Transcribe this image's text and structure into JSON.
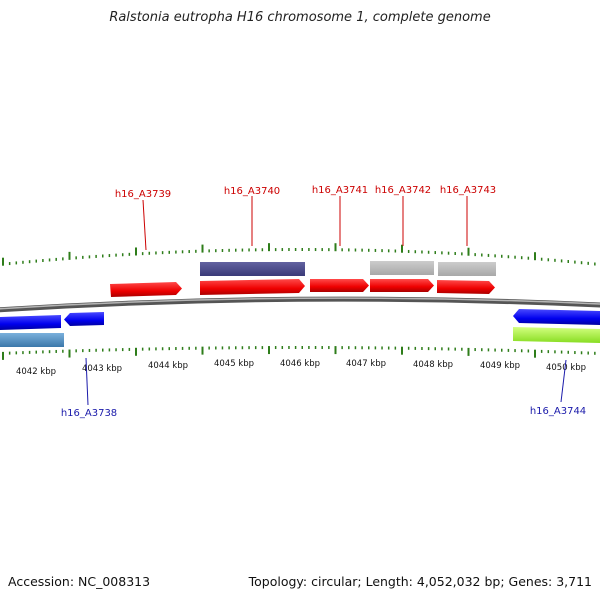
{
  "title": "Ralstonia eutropha H16 chromosome 1, complete genome",
  "footer": {
    "accession": "Accession: NC_008313",
    "summary": "Topology: circular; Length: 4,052,032 bp; Genes: 3,711"
  },
  "colors": {
    "forward_label": "#cc0000",
    "reverse_label": "#1a1aaa",
    "backbone": "#808080",
    "tick": "#2e7d1a"
  },
  "scale_ticks": [
    "4042 kbp",
    "4043 kbp",
    "4044 kbp",
    "4045 kbp",
    "4046 kbp",
    "4047 kbp",
    "4048 kbp",
    "4049 kbp",
    "4050 kbp"
  ],
  "gene_labels": {
    "h16_A3738": "h16_A3738",
    "h16_A3739": "h16_A3739",
    "h16_A3740": "h16_A3740",
    "h16_A3741": "h16_A3741",
    "h16_A3742": "h16_A3742",
    "h16_A3743": "h16_A3743",
    "h16_A3744": "h16_A3744"
  }
}
